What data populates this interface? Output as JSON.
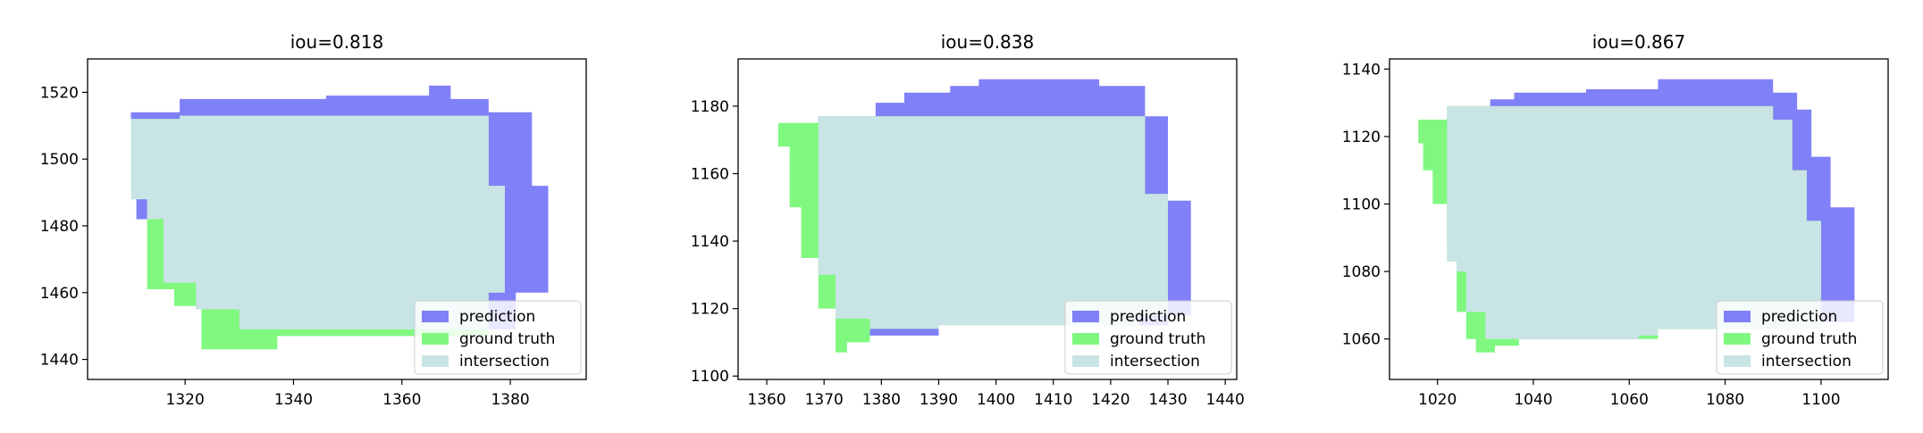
{
  "chart_data": [
    {
      "type": "area",
      "title": "iou=0.818",
      "xlabel": "",
      "ylabel": "",
      "xlim": [
        1302,
        1394
      ],
      "ylim": [
        1434,
        1530
      ],
      "xticks": [
        1320,
        1340,
        1360,
        1380
      ],
      "yticks": [
        1440,
        1460,
        1480,
        1500,
        1520
      ],
      "legend_position": "bottom-right",
      "series": [
        {
          "name": "prediction",
          "color": "#8080f8",
          "points": [
            [
              1310,
              1514
            ],
            [
              1319,
              1514
            ],
            [
              1319,
              1518
            ],
            [
              1346,
              1518
            ],
            [
              1346,
              1519
            ],
            [
              1365,
              1519
            ],
            [
              1365,
              1522
            ],
            [
              1369,
              1522
            ],
            [
              1369,
              1518
            ],
            [
              1376,
              1518
            ],
            [
              1376,
              1514
            ],
            [
              1384,
              1514
            ],
            [
              1384,
              1492
            ],
            [
              1387,
              1492
            ],
            [
              1387,
              1460
            ],
            [
              1381,
              1460
            ],
            [
              1381,
              1449
            ],
            [
              1330,
              1449
            ],
            [
              1330,
              1455
            ],
            [
              1322,
              1455
            ],
            [
              1322,
              1463
            ],
            [
              1316,
              1463
            ],
            [
              1316,
              1482
            ],
            [
              1311,
              1482
            ],
            [
              1311,
              1504
            ],
            [
              1310,
              1504
            ]
          ]
        },
        {
          "name": "ground truth",
          "color": "#80f880",
          "points": [
            [
              1310,
              1512
            ],
            [
              1319,
              1512
            ],
            [
              1319,
              1513
            ],
            [
              1376,
              1513
            ],
            [
              1376,
              1492
            ],
            [
              1379,
              1492
            ],
            [
              1379,
              1460
            ],
            [
              1376,
              1460
            ],
            [
              1376,
              1447
            ],
            [
              1337,
              1447
            ],
            [
              1337,
              1443
            ],
            [
              1323,
              1443
            ],
            [
              1323,
              1456
            ],
            [
              1318,
              1456
            ],
            [
              1318,
              1461
            ],
            [
              1313,
              1461
            ],
            [
              1313,
              1488
            ],
            [
              1310,
              1488
            ]
          ]
        },
        {
          "name": "intersection",
          "color": "#c8e4e4",
          "points": [
            [
              1310,
              1512
            ],
            [
              1319,
              1512
            ],
            [
              1319,
              1513
            ],
            [
              1376,
              1513
            ],
            [
              1376,
              1492
            ],
            [
              1379,
              1492
            ],
            [
              1379,
              1460
            ],
            [
              1376,
              1460
            ],
            [
              1376,
              1449
            ],
            [
              1330,
              1449
            ],
            [
              1330,
              1455
            ],
            [
              1322,
              1455
            ],
            [
              1322,
              1463
            ],
            [
              1316,
              1463
            ],
            [
              1316,
              1482
            ],
            [
              1313,
              1482
            ],
            [
              1313,
              1488
            ],
            [
              1310,
              1488
            ]
          ]
        }
      ]
    },
    {
      "type": "area",
      "title": "iou=0.838",
      "xlabel": "",
      "ylabel": "",
      "xlim": [
        1355,
        1442
      ],
      "ylim": [
        1099,
        1194
      ],
      "xticks": [
        1360,
        1370,
        1380,
        1390,
        1400,
        1410,
        1420,
        1430,
        1440
      ],
      "yticks": [
        1100,
        1120,
        1140,
        1160,
        1180
      ],
      "legend_position": "bottom-right",
      "series": [
        {
          "name": "prediction",
          "color": "#8080f8",
          "points": [
            [
              1369,
              1177
            ],
            [
              1379,
              1177
            ],
            [
              1379,
              1181
            ],
            [
              1384,
              1181
            ],
            [
              1384,
              1184
            ],
            [
              1392,
              1184
            ],
            [
              1392,
              1186
            ],
            [
              1397,
              1186
            ],
            [
              1397,
              1188
            ],
            [
              1418,
              1188
            ],
            [
              1418,
              1186
            ],
            [
              1426,
              1186
            ],
            [
              1426,
              1177
            ],
            [
              1430,
              1177
            ],
            [
              1430,
              1152
            ],
            [
              1434,
              1152
            ],
            [
              1434,
              1118
            ],
            [
              1430,
              1118
            ],
            [
              1430,
              1115
            ],
            [
              1390,
              1115
            ],
            [
              1390,
              1112
            ],
            [
              1378,
              1112
            ],
            [
              1378,
              1117
            ],
            [
              1372,
              1117
            ],
            [
              1372,
              1130
            ],
            [
              1369,
              1130
            ]
          ]
        },
        {
          "name": "ground truth",
          "color": "#80f880",
          "points": [
            [
              1362,
              1175
            ],
            [
              1369,
              1175
            ],
            [
              1369,
              1177
            ],
            [
              1426,
              1177
            ],
            [
              1426,
              1154
            ],
            [
              1430,
              1154
            ],
            [
              1430,
              1118
            ],
            [
              1425,
              1118
            ],
            [
              1425,
              1115
            ],
            [
              1390,
              1115
            ],
            [
              1390,
              1114
            ],
            [
              1378,
              1114
            ],
            [
              1378,
              1110
            ],
            [
              1374,
              1110
            ],
            [
              1374,
              1107
            ],
            [
              1372,
              1107
            ],
            [
              1372,
              1120
            ],
            [
              1369,
              1120
            ],
            [
              1369,
              1135
            ],
            [
              1366,
              1135
            ],
            [
              1366,
              1150
            ],
            [
              1364,
              1150
            ],
            [
              1364,
              1168
            ],
            [
              1362,
              1168
            ]
          ]
        },
        {
          "name": "intersection",
          "color": "#c8e4e4",
          "points": [
            [
              1369,
              1177
            ],
            [
              1426,
              1177
            ],
            [
              1426,
              1154
            ],
            [
              1430,
              1154
            ],
            [
              1430,
              1118
            ],
            [
              1425,
              1118
            ],
            [
              1425,
              1115
            ],
            [
              1390,
              1115
            ],
            [
              1390,
              1114
            ],
            [
              1378,
              1114
            ],
            [
              1378,
              1117
            ],
            [
              1372,
              1117
            ],
            [
              1372,
              1130
            ],
            [
              1369,
              1130
            ]
          ]
        }
      ]
    },
    {
      "type": "area",
      "title": "iou=0.867",
      "xlabel": "",
      "ylabel": "",
      "xlim": [
        1010,
        1114
      ],
      "ylim": [
        1048,
        1143
      ],
      "xticks": [
        1020,
        1040,
        1060,
        1080,
        1100
      ],
      "yticks": [
        1060,
        1080,
        1100,
        1120,
        1140
      ],
      "legend_position": "bottom-right",
      "series": [
        {
          "name": "prediction",
          "color": "#8080f8",
          "points": [
            [
              1022,
              1129
            ],
            [
              1031,
              1129
            ],
            [
              1031,
              1131
            ],
            [
              1036,
              1131
            ],
            [
              1036,
              1133
            ],
            [
              1051,
              1133
            ],
            [
              1051,
              1134
            ],
            [
              1066,
              1134
            ],
            [
              1066,
              1137
            ],
            [
              1090,
              1137
            ],
            [
              1090,
              1133
            ],
            [
              1095,
              1133
            ],
            [
              1095,
              1128
            ],
            [
              1098,
              1128
            ],
            [
              1098,
              1114
            ],
            [
              1102,
              1114
            ],
            [
              1102,
              1099
            ],
            [
              1107,
              1099
            ],
            [
              1107,
              1065
            ],
            [
              1100,
              1065
            ],
            [
              1100,
              1063
            ],
            [
              1066,
              1063
            ],
            [
              1066,
              1061
            ],
            [
              1062,
              1061
            ],
            [
              1062,
              1060
            ],
            [
              1030,
              1060
            ],
            [
              1030,
              1068
            ],
            [
              1026,
              1068
            ],
            [
              1026,
              1080
            ],
            [
              1024,
              1080
            ],
            [
              1024,
              1088
            ],
            [
              1022,
              1088
            ]
          ]
        },
        {
          "name": "ground truth",
          "color": "#80f880",
          "points": [
            [
              1016,
              1125
            ],
            [
              1022,
              1125
            ],
            [
              1022,
              1129
            ],
            [
              1090,
              1129
            ],
            [
              1090,
              1125
            ],
            [
              1094,
              1125
            ],
            [
              1094,
              1110
            ],
            [
              1097,
              1110
            ],
            [
              1097,
              1095
            ],
            [
              1100,
              1095
            ],
            [
              1100,
              1063
            ],
            [
              1066,
              1063
            ],
            [
              1066,
              1060
            ],
            [
              1037,
              1060
            ],
            [
              1037,
              1058
            ],
            [
              1032,
              1058
            ],
            [
              1032,
              1056
            ],
            [
              1028,
              1056
            ],
            [
              1028,
              1060
            ],
            [
              1026,
              1060
            ],
            [
              1026,
              1068
            ],
            [
              1024,
              1068
            ],
            [
              1024,
              1083
            ],
            [
              1022,
              1083
            ],
            [
              1022,
              1100
            ],
            [
              1019,
              1100
            ],
            [
              1019,
              1110
            ],
            [
              1017,
              1110
            ],
            [
              1017,
              1118
            ],
            [
              1016,
              1118
            ]
          ]
        },
        {
          "name": "intersection",
          "color": "#c8e4e4",
          "points": [
            [
              1022,
              1129
            ],
            [
              1090,
              1129
            ],
            [
              1090,
              1125
            ],
            [
              1094,
              1125
            ],
            [
              1094,
              1110
            ],
            [
              1097,
              1110
            ],
            [
              1097,
              1095
            ],
            [
              1100,
              1095
            ],
            [
              1100,
              1063
            ],
            [
              1066,
              1063
            ],
            [
              1066,
              1061
            ],
            [
              1062,
              1061
            ],
            [
              1062,
              1060
            ],
            [
              1030,
              1060
            ],
            [
              1030,
              1068
            ],
            [
              1026,
              1068
            ],
            [
              1026,
              1080
            ],
            [
              1024,
              1080
            ],
            [
              1024,
              1083
            ],
            [
              1022,
              1083
            ]
          ]
        }
      ]
    }
  ]
}
